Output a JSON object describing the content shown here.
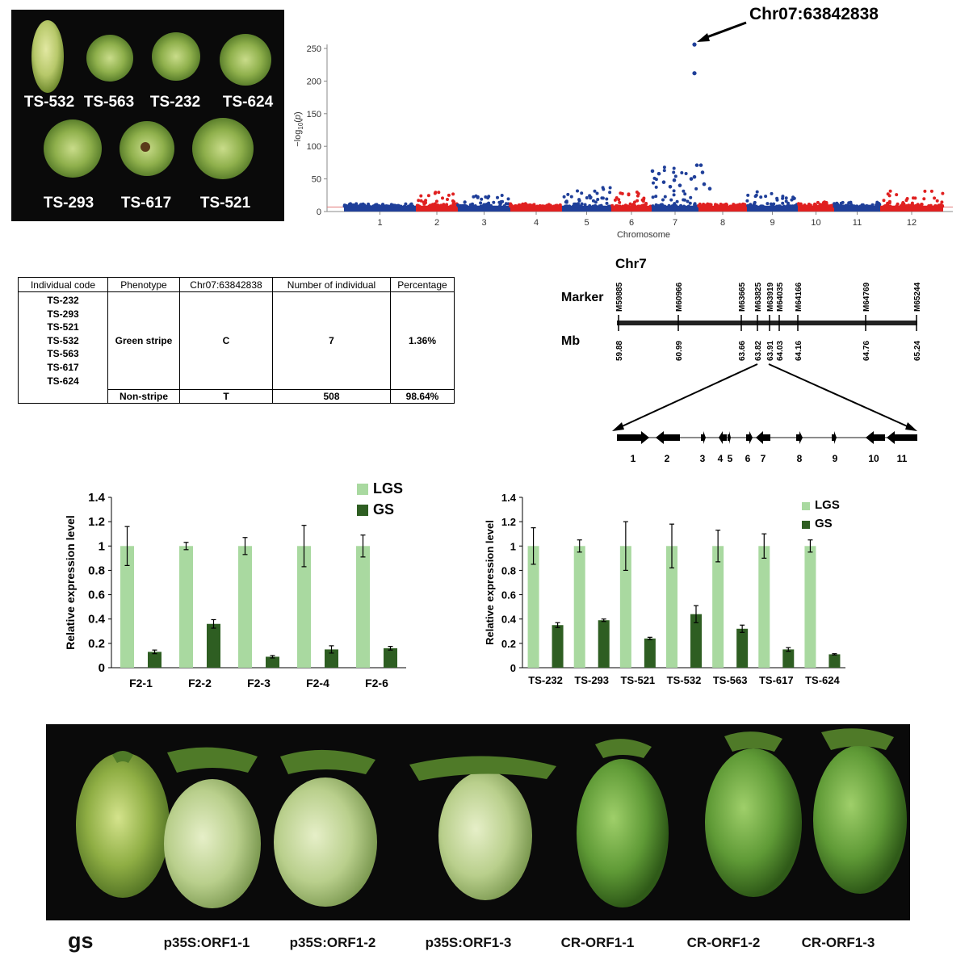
{
  "panel_a": {
    "fruit_labels": [
      "TS-532",
      "TS-563",
      "TS-232",
      "TS-624",
      "TS-293",
      "TS-617",
      "TS-521"
    ]
  },
  "manhattan": {
    "annotation": "Chr07:63842838",
    "ylabel": "−log10(p)",
    "xlabel": "Chromosome",
    "yticks": [
      0,
      50,
      100,
      150,
      200,
      250
    ],
    "chromosomes": [
      "1",
      "2",
      "3",
      "4",
      "5",
      "6",
      "7",
      "8",
      "9",
      "10",
      "11",
      "12"
    ],
    "colors": {
      "odd": "#1f3f99",
      "even": "#e02020",
      "threshold": "#e37b7b"
    }
  },
  "table": {
    "headers": [
      "Individual code",
      "Phenotype",
      "Chr07:63842838",
      "Number of individual",
      "Percentage"
    ],
    "rows": [
      {
        "codes": [
          "TS-232",
          "TS-293",
          "TS-521",
          "TS-532",
          "TS-563",
          "TS-617",
          "TS-624"
        ],
        "phenotype": "Green stripe",
        "allele": "C",
        "number": "7",
        "percentage": "1.36%"
      },
      {
        "codes": [],
        "phenotype": "Non-stripe",
        "allele": "T",
        "number": "508",
        "percentage": "98.64%"
      }
    ]
  },
  "genemap": {
    "chrom": "Chr7",
    "marker_label": "Marker",
    "mb_label": "Mb",
    "markers": [
      "M59885",
      "M60966",
      "M63665",
      "M63825",
      "M63919",
      "M64035",
      "M64166",
      "M64769",
      "M65244"
    ],
    "positions": [
      "59.88",
      "60.99",
      "63.66",
      "63.82",
      "63.91",
      "64.03",
      "64.16",
      "64.76",
      "65.24"
    ],
    "genes": [
      "1",
      "2",
      "3",
      "4",
      "5",
      "6",
      "7",
      "8",
      "9",
      "10",
      "11"
    ]
  },
  "chart_data": [
    {
      "type": "bar",
      "title": "",
      "ylabel": "Relative expression level",
      "xlabel": "",
      "ylim": [
        0,
        1.4
      ],
      "yticks": [
        "0",
        "0.2",
        "0.4",
        "0.6",
        "0.8",
        "1",
        "1.2",
        "1.4"
      ],
      "categories": [
        "F2-1",
        "F2-2",
        "F2-3",
        "F2-4",
        "F2-6"
      ],
      "series": [
        {
          "name": "LGS",
          "color": "#a9d9a0",
          "values": [
            1,
            1,
            1,
            1,
            1
          ],
          "errors": [
            0.16,
            0.03,
            0.07,
            0.17,
            0.09
          ]
        },
        {
          "name": "GS",
          "color": "#2e5e22",
          "values": [
            0.13,
            0.36,
            0.09,
            0.15,
            0.16
          ],
          "errors": [
            0.015,
            0.035,
            0.01,
            0.03,
            0.015
          ]
        }
      ],
      "legend": "top-right"
    },
    {
      "type": "bar",
      "title": "",
      "ylabel": "Relative expression level",
      "xlabel": "",
      "ylim": [
        0,
        1.4
      ],
      "yticks": [
        "0",
        "0.2",
        "0.4",
        "0.6",
        "0.8",
        "1",
        "1.2",
        "1.4"
      ],
      "categories": [
        "TS-232",
        "TS-293",
        "TS-521",
        "TS-532",
        "TS-563",
        "TS-617",
        "TS-624"
      ],
      "series": [
        {
          "name": "LGS",
          "color": "#a9d9a0",
          "values": [
            1,
            1,
            1,
            1,
            1,
            1,
            1
          ],
          "errors": [
            0.15,
            0.05,
            0.2,
            0.18,
            0.13,
            0.1,
            0.05
          ]
        },
        {
          "name": "GS",
          "color": "#2e5e22",
          "values": [
            0.35,
            0.39,
            0.24,
            0.44,
            0.32,
            0.15,
            0.11
          ],
          "errors": [
            0.02,
            0.01,
            0.01,
            0.07,
            0.03,
            0.015,
            0.005
          ]
        }
      ],
      "legend": "top-right"
    }
  ],
  "panel_fruits": {
    "labels": [
      "gs",
      "p35S:ORF1-1",
      "p35S:ORF1-2",
      "p35S:ORF1-3",
      "CR-ORF1-1",
      "CR-ORF1-2",
      "CR-ORF1-3"
    ]
  }
}
